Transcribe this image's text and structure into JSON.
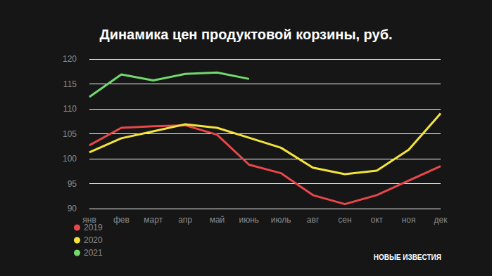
{
  "chart_data": {
    "type": "line",
    "title": "Динамика цен продуктовой корзины, руб.",
    "categories": [
      "янв",
      "фев",
      "март",
      "апр",
      "май",
      "июнь",
      "июль",
      "авг",
      "сен",
      "окт",
      "ноя",
      "дек"
    ],
    "series": [
      {
        "name": "2019",
        "color": "#e8474a",
        "values": [
          102.7,
          106.2,
          106.5,
          106.7,
          104.8,
          98.8,
          97.1,
          92.7,
          90.9,
          92.7,
          95.6,
          98.5
        ]
      },
      {
        "name": "2020",
        "color": "#f3e43c",
        "values": [
          101.3,
          104.1,
          105.5,
          106.9,
          106.2,
          104.2,
          102.2,
          98.2,
          96.9,
          97.6,
          101.8,
          109.1
        ]
      },
      {
        "name": "2021",
        "color": "#72d96e",
        "values": [
          112.4,
          116.9,
          115.7,
          117.0,
          117.3,
          116.0,
          null,
          null,
          null,
          null,
          null,
          null
        ]
      }
    ],
    "ylim": [
      90,
      120
    ],
    "yticks": [
      90,
      95,
      100,
      105,
      110,
      115,
      120
    ],
    "grid": true,
    "legend": "bottom-left",
    "annotations": [
      "НОВЫЕ ИЗВЕСТИЯ"
    ]
  }
}
